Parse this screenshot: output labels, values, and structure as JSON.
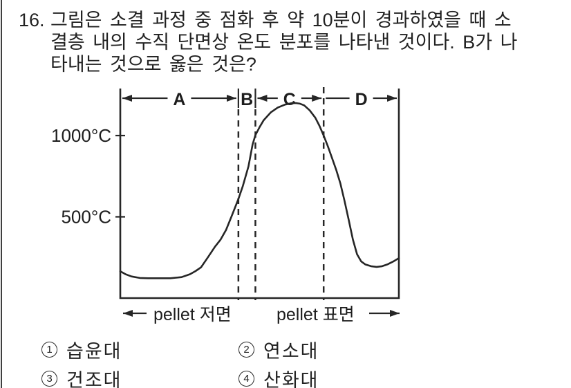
{
  "colors": {
    "ink": "#222222",
    "paper": "#ffffff"
  },
  "question": {
    "number": "16.",
    "lines": [
      "그림은 소결 과정 중 점화 후 약 10분이 경과하였을 때 소",
      "결층 내의 수직 단면상 온도 분포를 나타낸 것이다. B가 나",
      "타내는 것으로 옳은 것은?"
    ]
  },
  "chart_data": {
    "type": "line",
    "title": "",
    "xlabel_left": "pellet 저면",
    "xlabel_right": "pellet 표면",
    "y_ticks": [
      {
        "label": "1000°C",
        "value": 1000
      },
      {
        "label": "500°C",
        "value": 500
      }
    ],
    "y_range": [
      0,
      1300
    ],
    "grid": false,
    "zones": [
      {
        "label": "A",
        "from_pct": 0,
        "to_pct": 42.4,
        "arrows": "both"
      },
      {
        "label": "B",
        "from_pct": 42.4,
        "to_pct": 48.5,
        "arrows": "none"
      },
      {
        "label": "C",
        "from_pct": 48.5,
        "to_pct": 73.0,
        "arrows": "both"
      },
      {
        "label": "D",
        "from_pct": 73.0,
        "to_pct": 100,
        "arrows": "right"
      }
    ],
    "boundaries": [
      {
        "pct": 42.4,
        "top_bar": true
      },
      {
        "pct": 48.5,
        "top_bar": true
      },
      {
        "pct": 73.0,
        "top_bar": false
      }
    ],
    "series": [
      {
        "name": "temperature_C_vs_bed_depth_pct",
        "points": [
          [
            0,
            165
          ],
          [
            2,
            146
          ],
          [
            4,
            133
          ],
          [
            7,
            124
          ],
          [
            10,
            122
          ],
          [
            14,
            122
          ],
          [
            18,
            122
          ],
          [
            22,
            129
          ],
          [
            25,
            147
          ],
          [
            27,
            166
          ],
          [
            29,
            190
          ],
          [
            31.5,
            252
          ],
          [
            34,
            316
          ],
          [
            36,
            360
          ],
          [
            38,
            420
          ],
          [
            40,
            505
          ],
          [
            42.4,
            610
          ],
          [
            44,
            690
          ],
          [
            46,
            810
          ],
          [
            47.5,
            945
          ],
          [
            48.5,
            1003
          ],
          [
            50,
            1052
          ],
          [
            51.5,
            1095
          ],
          [
            54,
            1142
          ],
          [
            56.5,
            1172
          ],
          [
            59,
            1190
          ],
          [
            61.5,
            1199
          ],
          [
            63,
            1200
          ],
          [
            64.5,
            1196
          ],
          [
            66,
            1186
          ],
          [
            68,
            1155
          ],
          [
            70,
            1110
          ],
          [
            71.5,
            1060
          ],
          [
            73,
            1000
          ],
          [
            74.5,
            935
          ],
          [
            76,
            862
          ],
          [
            77.5,
            790
          ],
          [
            79,
            705
          ],
          [
            80.5,
            598
          ],
          [
            82,
            480
          ],
          [
            83.5,
            360
          ],
          [
            85,
            270
          ],
          [
            86.5,
            225
          ],
          [
            88,
            207
          ],
          [
            90,
            196
          ],
          [
            92,
            192
          ],
          [
            94,
            196
          ],
          [
            96,
            208
          ],
          [
            98,
            225
          ],
          [
            100,
            246
          ]
        ]
      }
    ]
  },
  "options": [
    {
      "num": "1",
      "label": "습윤대"
    },
    {
      "num": "2",
      "label": "연소대"
    },
    {
      "num": "3",
      "label": "건조대"
    },
    {
      "num": "4",
      "label": "산화대"
    }
  ]
}
